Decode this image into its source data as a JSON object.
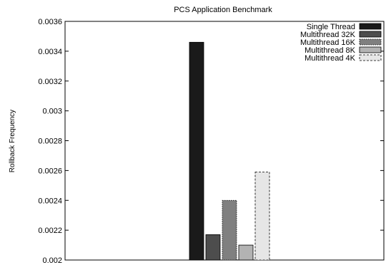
{
  "chart_data": {
    "type": "bar",
    "title": "PCS Application Benchmark",
    "xlabel": "",
    "ylabel": "Rollback Frequency",
    "ylim": [
      0.002,
      0.0036
    ],
    "yticks": [
      "0.002",
      "0.0022",
      "0.0024",
      "0.0026",
      "0.0028",
      "0.003",
      "0.0032",
      "0.0034",
      "0.0036"
    ],
    "grid": false,
    "legend_position": "top-right",
    "categories": [
      ""
    ],
    "series": [
      {
        "name": "Single Thread",
        "values": [
          0.00346
        ],
        "color": "#1a1a1a",
        "pattern": "solid"
      },
      {
        "name": "Multithread 32K",
        "values": [
          0.00217
        ],
        "color": "#4d4d4d",
        "pattern": "solid"
      },
      {
        "name": "Multithread 16K",
        "values": [
          0.0024
        ],
        "color": "#808080",
        "pattern": "dotted"
      },
      {
        "name": "Multithread 8K",
        "values": [
          0.0021
        ],
        "color": "#b3b3b3",
        "pattern": "solid"
      },
      {
        "name": "Multithread 4K",
        "values": [
          0.00259
        ],
        "color": "#e6e6e6",
        "pattern": "dashed"
      }
    ]
  }
}
